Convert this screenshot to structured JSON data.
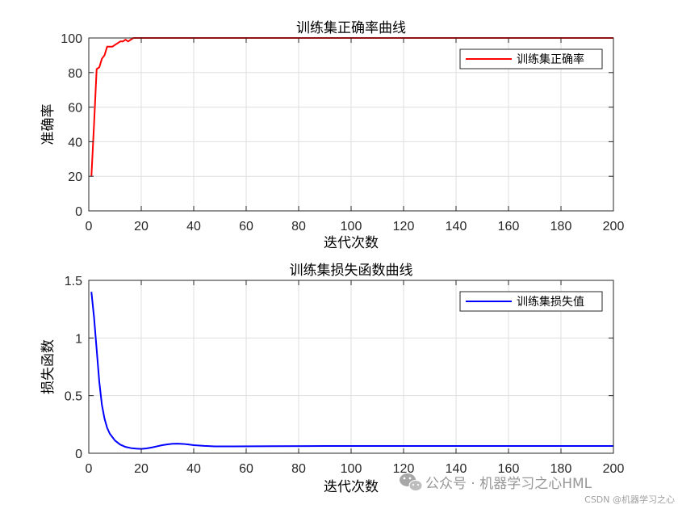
{
  "chart_data": [
    {
      "type": "line",
      "title": "训练集正确率曲线",
      "xlabel": "迭代次数",
      "ylabel": "准确率",
      "xlim": [
        0,
        200
      ],
      "ylim": [
        0,
        100
      ],
      "xticks": [
        0,
        20,
        40,
        60,
        80,
        100,
        120,
        140,
        160,
        180,
        200
      ],
      "yticks": [
        0,
        20,
        40,
        60,
        80,
        100
      ],
      "xtick_labels": [
        "0",
        "20",
        "40",
        "60",
        "80",
        "100",
        "120",
        "140",
        "160",
        "180",
        "200"
      ],
      "ytick_labels": [
        "0",
        "20",
        "40",
        "60",
        "80",
        "100"
      ],
      "grid": true,
      "legend_position": "top-right",
      "series": [
        {
          "name": "训练集正确率",
          "color": "#ff0000",
          "x": [
            1,
            2,
            3,
            4,
            5,
            6,
            7,
            8,
            9,
            10,
            11,
            12,
            13,
            14,
            15,
            16,
            17,
            18,
            20,
            200
          ],
          "y": [
            20,
            50,
            82,
            83,
            88,
            90,
            95,
            95,
            95,
            96,
            97,
            98,
            98,
            99,
            98,
            99,
            100,
            100,
            100,
            100
          ]
        }
      ]
    },
    {
      "type": "line",
      "title": "训练集损失函数曲线",
      "xlabel": "迭代次数",
      "ylabel": "损失函数",
      "xlim": [
        0,
        200
      ],
      "ylim": [
        0,
        1.5
      ],
      "xticks": [
        0,
        20,
        40,
        60,
        80,
        100,
        120,
        140,
        160,
        180,
        200
      ],
      "yticks": [
        0,
        0.5,
        1,
        1.5
      ],
      "xtick_labels": [
        "0",
        "20",
        "40",
        "60",
        "80",
        "100",
        "120",
        "140",
        "160",
        "180",
        "200"
      ],
      "ytick_labels": [
        "0",
        "0.5",
        "1",
        "1.5"
      ],
      "grid": true,
      "legend_position": "top-right",
      "series": [
        {
          "name": "训练集损失值",
          "color": "#0000ff",
          "x": [
            1,
            2,
            3,
            4,
            5,
            6,
            7,
            8,
            10,
            12,
            14,
            16,
            18,
            20,
            22,
            24,
            26,
            28,
            30,
            32,
            34,
            36,
            38,
            40,
            44,
            48,
            55,
            70,
            90,
            110,
            140,
            170,
            200
          ],
          "y": [
            1.4,
            1.18,
            0.9,
            0.62,
            0.42,
            0.3,
            0.22,
            0.17,
            0.11,
            0.075,
            0.055,
            0.045,
            0.04,
            0.038,
            0.042,
            0.05,
            0.06,
            0.07,
            0.077,
            0.082,
            0.083,
            0.081,
            0.076,
            0.07,
            0.064,
            0.06,
            0.06,
            0.061,
            0.063,
            0.063,
            0.063,
            0.063,
            0.063
          ]
        }
      ]
    }
  ],
  "watermark": {
    "line1": "公众号 · 机器学习之心HML",
    "line2": "CSDN @机器学习之心",
    "icon": "wechat-icon"
  }
}
